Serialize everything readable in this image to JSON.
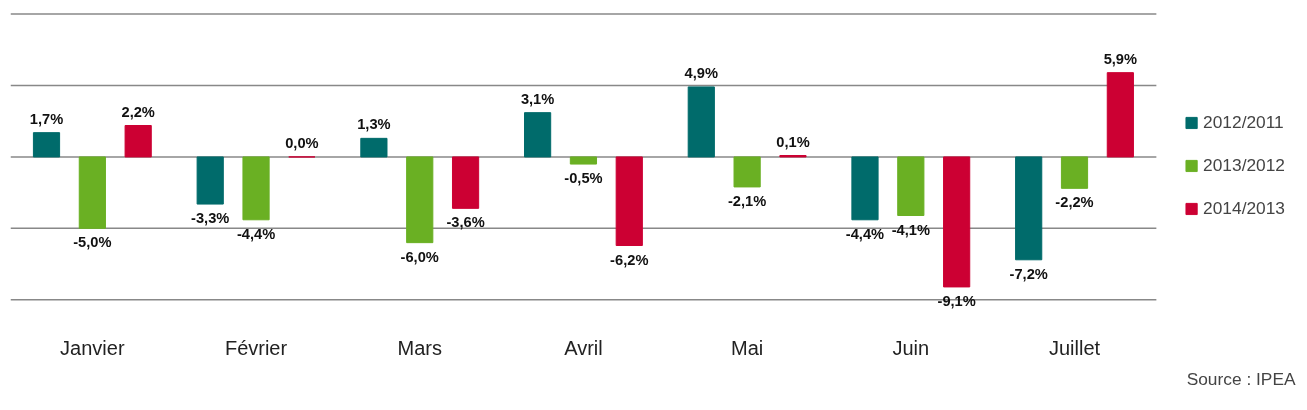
{
  "chart_data": {
    "type": "bar",
    "categories": [
      "Janvier",
      "Février",
      "Mars",
      "Avril",
      "Mai",
      "Juin",
      "Juillet"
    ],
    "series": [
      {
        "name": "2012/2011",
        "color": "#006b6b",
        "values": [
          1.7,
          -3.3,
          1.3,
          3.1,
          4.9,
          -4.4,
          -7.2
        ],
        "value_labels": [
          "1,7%",
          "-3,3%",
          "1,3%",
          "3,1%",
          "4,9%",
          "-4,4%",
          "-7,2%"
        ]
      },
      {
        "name": "2013/2012",
        "color": "#6ab023",
        "values": [
          -5.0,
          -4.4,
          -6.0,
          -0.5,
          -2.1,
          -4.1,
          -2.2
        ],
        "value_labels": [
          "-5,0%",
          "-4,4%",
          "-6,0%",
          "-0,5%",
          "-2,1%",
          "-4,1%",
          "-2,2%"
        ]
      },
      {
        "name": "2014/2013",
        "color": "#cc0033",
        "values": [
          2.2,
          0.0,
          -3.6,
          -6.2,
          0.1,
          -9.1,
          5.9
        ],
        "value_labels": [
          "2,2%",
          "0,0%",
          "-3,6%",
          "-6,2%",
          "0,1%",
          "-9,1%",
          "5,9%"
        ]
      }
    ],
    "yticks": [
      {
        "value": -10,
        "label": null
      },
      {
        "value": -5,
        "label": null
      },
      {
        "value": 0,
        "label": null
      },
      {
        "value": 5,
        "label": null
      },
      {
        "value": 10,
        "label": null
      }
    ],
    "tick_labels": "x",
    "grid": "y",
    "legend": "right",
    "annotations": [
      "Source : IPEA"
    ]
  }
}
